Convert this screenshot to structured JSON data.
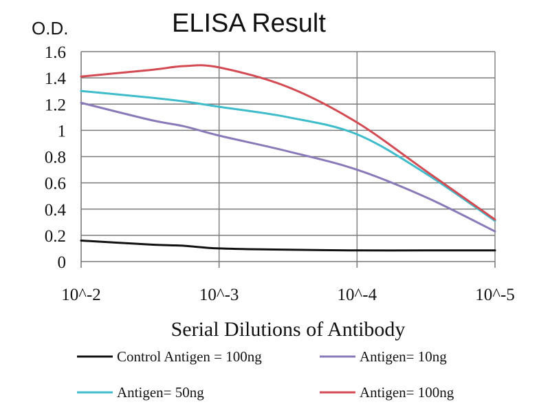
{
  "chart_data": {
    "type": "line",
    "title": "ELISA Result",
    "ylabel": "O.D.",
    "xlabel": "Serial Dilutions of Antibody",
    "x_categories": [
      "10^-2",
      "10^-3",
      "10^-4",
      "10^-5"
    ],
    "x": [
      0,
      0.5,
      0.75,
      1,
      1.5,
      2,
      2.5,
      3
    ],
    "ylim": [
      0,
      1.6
    ],
    "yticks": [
      "0",
      "0.2",
      "0.4",
      "0.6",
      "0.8",
      "1",
      "1.2",
      "1.4",
      "1.6"
    ],
    "ytick_values": [
      0,
      0.2,
      0.4,
      0.6,
      0.8,
      1.0,
      1.2,
      1.4,
      1.6
    ],
    "grid": true,
    "legend_position": "bottom",
    "series": [
      {
        "name": "Control Antigen = 100ng",
        "color": "#111111",
        "values": [
          0.16,
          0.13,
          0.12,
          0.1,
          0.09,
          0.085,
          0.085,
          0.085
        ]
      },
      {
        "name": "Antigen= 10ng",
        "color": "#8a79b8",
        "values": [
          1.21,
          1.08,
          1.03,
          0.96,
          0.84,
          0.7,
          0.49,
          0.23
        ]
      },
      {
        "name": "Antigen= 50ng",
        "color": "#3fbccc",
        "values": [
          1.3,
          1.25,
          1.22,
          1.18,
          1.1,
          0.97,
          0.67,
          0.31
        ]
      },
      {
        "name": "Antigen= 100ng",
        "color": "#d44a52",
        "values": [
          1.41,
          1.46,
          1.49,
          1.48,
          1.33,
          1.06,
          0.69,
          0.32
        ]
      }
    ]
  }
}
